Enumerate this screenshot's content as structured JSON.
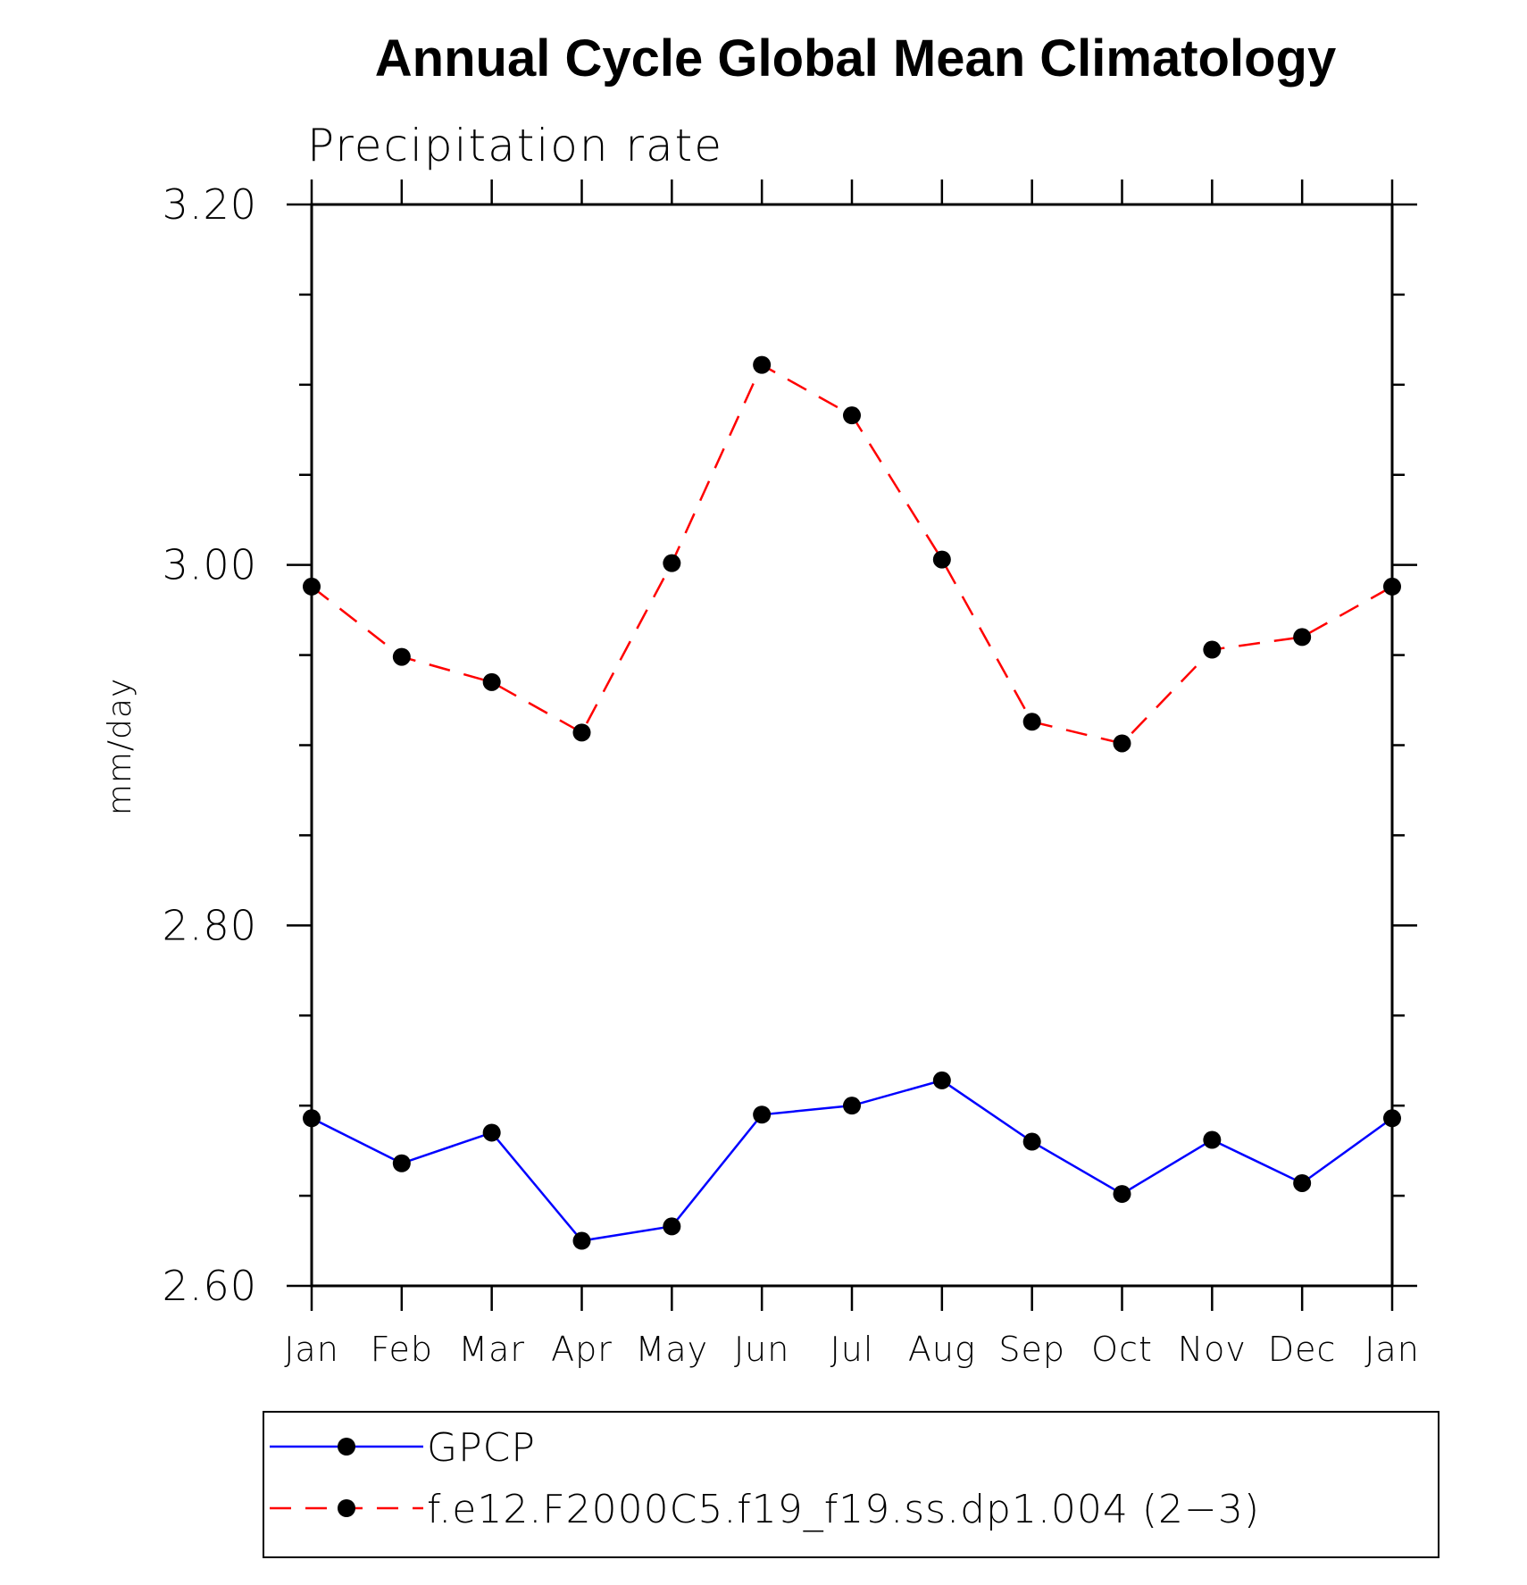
{
  "chart_data": {
    "type": "line",
    "title": "Annual Cycle Global Mean Climatology",
    "subtitle": "Precipitation rate",
    "xlabel": "",
    "ylabel": "mm/day",
    "categories": [
      "Jan",
      "Feb",
      "Mar",
      "Apr",
      "May",
      "Jun",
      "Jul",
      "Aug",
      "Sep",
      "Oct",
      "Nov",
      "Dec",
      "Jan"
    ],
    "ylim": [
      2.6,
      3.2
    ],
    "yticks": [
      "2.60",
      "2.80",
      "3.00",
      "3.20"
    ],
    "grid": false,
    "legend_position": "bottom",
    "series": [
      {
        "name": "GPCP",
        "color": "#0000ff",
        "line_style": "solid",
        "marker": "circle",
        "values": [
          2.693,
          2.668,
          2.685,
          2.625,
          2.633,
          2.695,
          2.7,
          2.714,
          2.68,
          2.651,
          2.681,
          2.657,
          2.693
        ]
      },
      {
        "name": "f.e12.F2000C5.f19_f19.ss.dp1.004 (2−3)",
        "color": "#ff0000",
        "line_style": "dashed",
        "marker": "circle",
        "values": [
          2.988,
          2.949,
          2.935,
          2.907,
          3.001,
          3.111,
          3.083,
          3.003,
          2.913,
          2.901,
          2.953,
          2.96,
          2.988
        ]
      }
    ]
  }
}
